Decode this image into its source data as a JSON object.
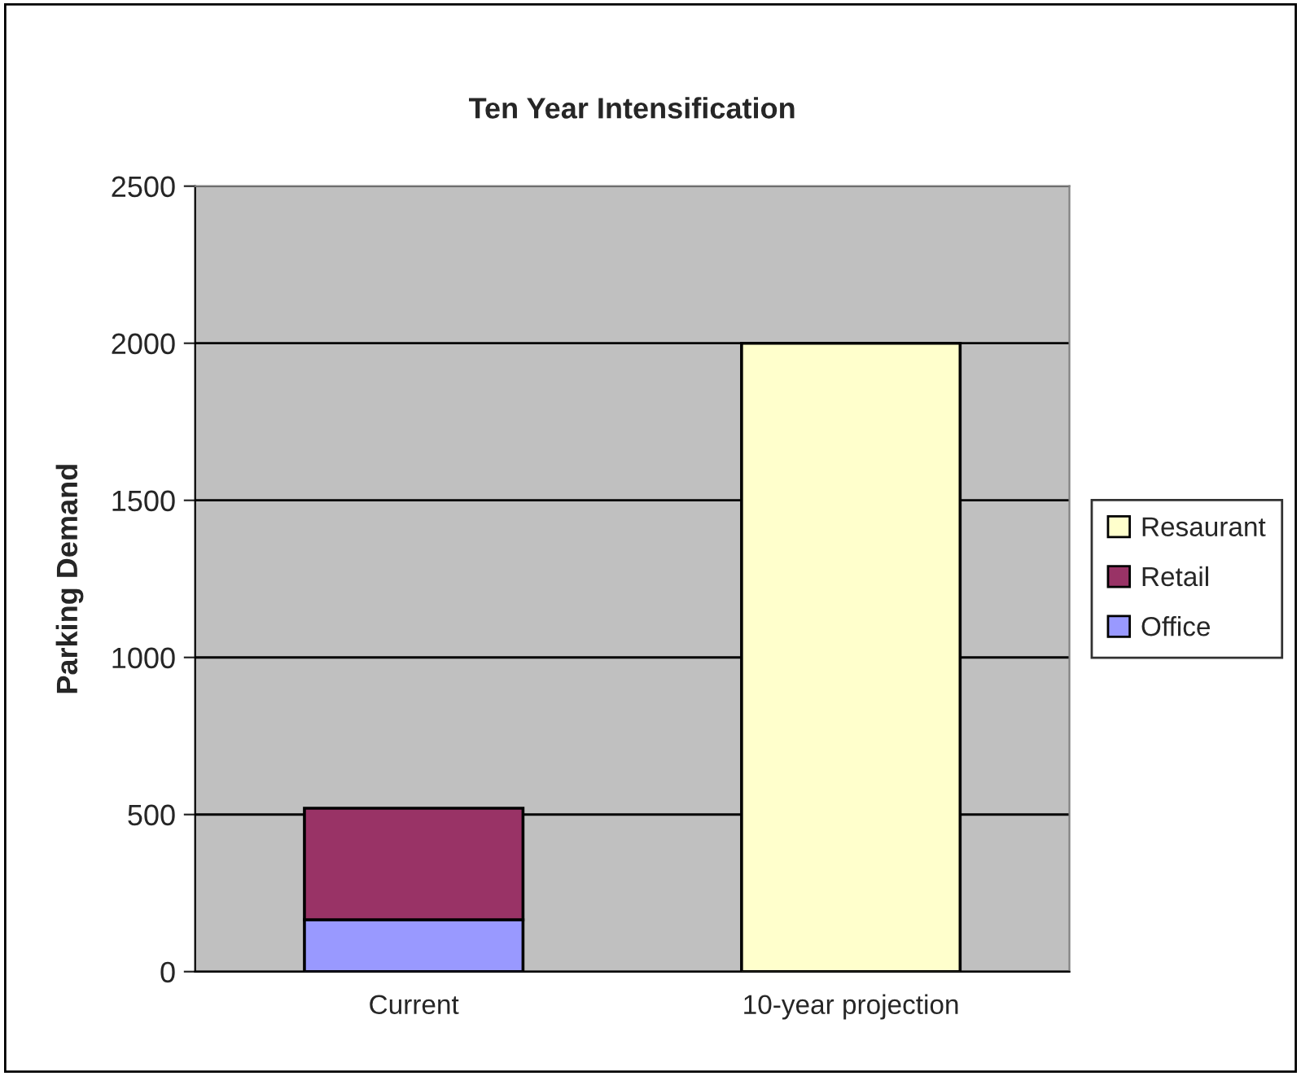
{
  "chart_data": {
    "type": "bar",
    "title": "Ten Year Intensification",
    "ylabel": "Parking Demand",
    "categories": [
      "Current",
      "10-year projection"
    ],
    "stacked": true,
    "series": [
      {
        "name": "Office",
        "color": "#9999ff",
        "values": [
          165,
          null
        ]
      },
      {
        "name": "Retail",
        "color": "#993366",
        "values": [
          355,
          null
        ]
      },
      {
        "name": "Resaurant",
        "color": "#ffffcc",
        "values": [
          null,
          2000
        ]
      }
    ],
    "ylim": [
      0,
      2500
    ],
    "yticks": [
      0,
      500,
      1000,
      1500,
      2000,
      2500
    ],
    "grid": "y",
    "legend": "right"
  }
}
